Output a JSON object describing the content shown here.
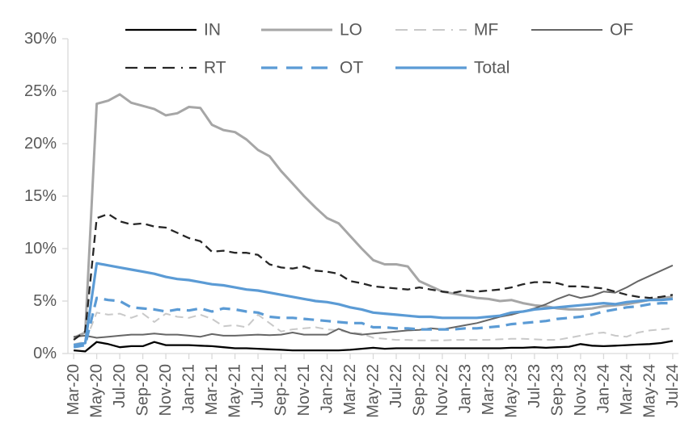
{
  "chart_data": {
    "type": "line",
    "title": "",
    "legend_position": "top",
    "grid": "off",
    "axis_color": "#d9d9d9",
    "text_color": "#595959",
    "y_axis": {
      "min": 0,
      "max": 30,
      "step": 5,
      "tick_labels": [
        "0%",
        "5%",
        "10%",
        "15%",
        "20%",
        "25%",
        "30%"
      ]
    },
    "x_label_interval": 2,
    "x_labels": [
      "Mar-20",
      "Apr-20",
      "May-20",
      "Jun-20",
      "Jul-20",
      "Aug-20",
      "Sep-20",
      "Oct-20",
      "Nov-20",
      "Dec-20",
      "Jan-21",
      "Feb-21",
      "Mar-21",
      "Apr-21",
      "May-21",
      "Jun-21",
      "Jul-21",
      "Aug-21",
      "Sep-21",
      "Oct-21",
      "Nov-21",
      "Dec-21",
      "Jan-22",
      "Feb-22",
      "Mar-22",
      "Apr-22",
      "May-22",
      "Jun-22",
      "Jul-22",
      "Aug-22",
      "Sep-22",
      "Oct-22",
      "Nov-22",
      "Dec-22",
      "Jan-23",
      "Feb-23",
      "Mar-23",
      "Apr-23",
      "May-23",
      "Jun-23",
      "Jul-23",
      "Aug-23",
      "Sep-23",
      "Oct-23",
      "Nov-23",
      "Dec-23",
      "Jan-24",
      "Feb-24",
      "Mar-24",
      "Apr-24",
      "May-24",
      "Jun-24",
      "Jul-24"
    ],
    "series": [
      {
        "name": "IN",
        "color": "#000000",
        "style": "solid",
        "width": 2.3,
        "values": [
          0.3,
          0.2,
          1.1,
          0.9,
          0.6,
          0.7,
          0.7,
          1.1,
          0.8,
          0.8,
          0.8,
          0.75,
          0.7,
          0.6,
          0.5,
          0.5,
          0.45,
          0.4,
          0.35,
          0.3,
          0.3,
          0.3,
          0.3,
          0.3,
          0.35,
          0.45,
          0.55,
          0.45,
          0.5,
          0.5,
          0.5,
          0.5,
          0.5,
          0.5,
          0.5,
          0.5,
          0.5,
          0.5,
          0.55,
          0.55,
          0.6,
          0.55,
          0.6,
          0.65,
          0.9,
          0.75,
          0.7,
          0.75,
          0.8,
          0.85,
          0.9,
          1.0,
          1.2
        ]
      },
      {
        "name": "LO",
        "color": "#a6a6a6",
        "style": "solid",
        "width": 3,
        "values": [
          1.5,
          2.0,
          23.8,
          24.1,
          24.7,
          23.9,
          23.6,
          23.3,
          22.7,
          22.9,
          23.5,
          23.4,
          21.8,
          21.3,
          21.1,
          20.4,
          19.4,
          18.8,
          17.4,
          16.2,
          15.0,
          13.9,
          12.9,
          12.4,
          11.2,
          10.0,
          8.9,
          8.5,
          8.5,
          8.3,
          6.9,
          6.4,
          5.9,
          5.7,
          5.5,
          5.3,
          5.2,
          5.0,
          5.1,
          4.8,
          4.6,
          4.5,
          4.3,
          4.2,
          4.2,
          4.3,
          4.5,
          4.6,
          4.7,
          4.9,
          5.1,
          5.3,
          5.4
        ]
      },
      {
        "name": "MF",
        "color": "#c9c9c9",
        "style": "dashed",
        "width": 2,
        "values": [
          0.9,
          1.1,
          3.9,
          3.7,
          3.8,
          3.4,
          3.8,
          3.0,
          3.8,
          3.5,
          3.4,
          3.7,
          3.3,
          2.6,
          2.7,
          2.5,
          3.7,
          2.9,
          2.1,
          2.3,
          2.4,
          2.5,
          2.3,
          2.2,
          2.0,
          1.9,
          1.5,
          1.4,
          1.3,
          1.3,
          1.25,
          1.25,
          1.25,
          1.3,
          1.3,
          1.3,
          1.3,
          1.35,
          1.4,
          1.4,
          1.35,
          1.3,
          1.3,
          1.5,
          1.7,
          1.9,
          2.0,
          1.7,
          1.6,
          2.0,
          2.2,
          2.3,
          2.4
        ]
      },
      {
        "name": "OF",
        "color": "#666666",
        "style": "solid",
        "width": 2,
        "values": [
          1.6,
          1.7,
          1.5,
          1.6,
          1.7,
          1.8,
          1.8,
          1.9,
          1.8,
          1.8,
          1.7,
          1.6,
          1.85,
          1.7,
          1.7,
          1.75,
          1.8,
          1.75,
          1.8,
          2.0,
          1.8,
          1.8,
          1.8,
          2.35,
          1.95,
          1.8,
          1.9,
          2.0,
          2.1,
          2.2,
          2.25,
          2.4,
          2.3,
          2.5,
          2.7,
          2.9,
          3.2,
          3.5,
          3.7,
          4.0,
          4.3,
          4.7,
          5.2,
          5.6,
          5.3,
          5.5,
          5.9,
          5.8,
          6.3,
          6.9,
          7.4,
          7.9,
          8.4
        ]
      },
      {
        "name": "RT",
        "color": "#262626",
        "style": "dashed",
        "width": 2.3,
        "values": [
          1.3,
          2.1,
          12.9,
          13.3,
          12.6,
          12.3,
          12.4,
          12.1,
          12.0,
          11.5,
          11.0,
          10.7,
          9.7,
          9.8,
          9.6,
          9.6,
          9.4,
          8.5,
          8.2,
          8.1,
          8.3,
          7.9,
          7.8,
          7.6,
          6.9,
          6.7,
          6.4,
          6.3,
          6.2,
          6.1,
          6.3,
          6.1,
          5.9,
          5.8,
          6.0,
          5.9,
          6.0,
          6.1,
          6.3,
          6.6,
          6.8,
          6.8,
          6.7,
          6.4,
          6.4,
          6.3,
          6.2,
          5.9,
          5.6,
          5.4,
          5.3,
          5.4,
          5.6
        ]
      },
      {
        "name": "OT",
        "color": "#5b9bd5",
        "style": "dashed",
        "width": 3.2,
        "values": [
          0.6,
          0.8,
          5.3,
          5.1,
          5.0,
          4.4,
          4.3,
          4.2,
          4.0,
          4.2,
          4.1,
          4.3,
          4.0,
          4.3,
          4.2,
          4.0,
          3.9,
          3.5,
          3.4,
          3.4,
          3.3,
          3.2,
          3.1,
          3.0,
          2.9,
          2.9,
          2.5,
          2.5,
          2.4,
          2.4,
          2.3,
          2.3,
          2.3,
          2.3,
          2.4,
          2.4,
          2.5,
          2.6,
          2.8,
          2.9,
          3.0,
          3.1,
          3.3,
          3.4,
          3.5,
          3.7,
          4.0,
          4.2,
          4.4,
          4.5,
          4.7,
          4.8,
          4.8
        ]
      },
      {
        "name": "Total",
        "color": "#5b9bd5",
        "style": "solid",
        "width": 3.2,
        "values": [
          0.8,
          1.0,
          8.6,
          8.4,
          8.2,
          8.0,
          7.8,
          7.6,
          7.3,
          7.1,
          7.0,
          6.8,
          6.6,
          6.5,
          6.3,
          6.1,
          6.0,
          5.8,
          5.6,
          5.4,
          5.2,
          5.0,
          4.9,
          4.7,
          4.4,
          4.2,
          3.9,
          3.8,
          3.7,
          3.6,
          3.5,
          3.5,
          3.4,
          3.4,
          3.4,
          3.4,
          3.5,
          3.6,
          3.9,
          4.0,
          4.2,
          4.3,
          4.4,
          4.5,
          4.6,
          4.7,
          4.8,
          4.7,
          4.9,
          5.0,
          5.1,
          5.1,
          5.2
        ]
      }
    ],
    "legend_order": [
      "IN",
      "LO",
      "MF",
      "OF",
      "RT",
      "OT",
      "Total"
    ]
  }
}
